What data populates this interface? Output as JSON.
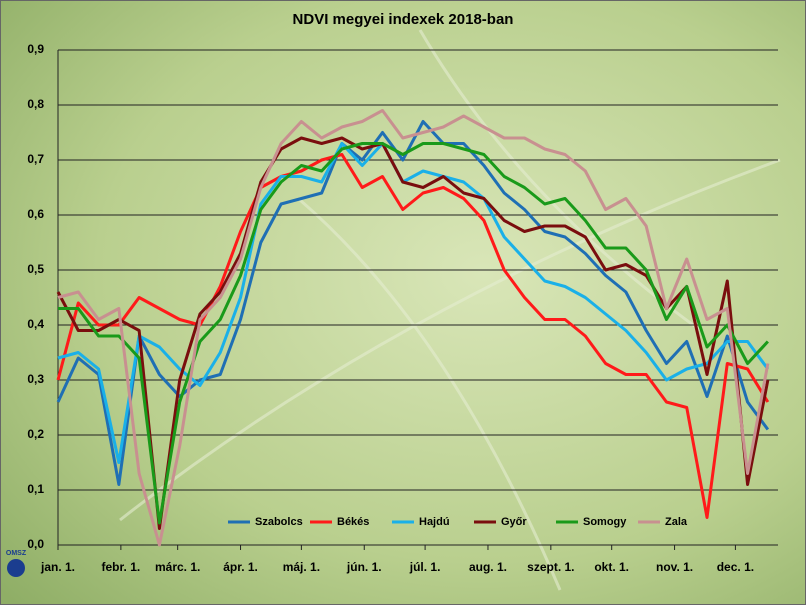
{
  "logo": "OMSZ",
  "chart_data": {
    "type": "line",
    "title": "NDVI megyei indexek 2018-ban",
    "x": [
      0,
      10,
      20,
      30,
      40,
      50,
      60,
      70,
      80,
      90,
      100,
      110,
      120,
      130,
      140,
      150,
      160,
      170,
      180,
      190,
      200,
      210,
      220,
      230,
      240,
      250,
      260,
      270,
      280,
      290,
      300,
      310,
      320,
      330,
      340,
      350
    ],
    "xlim": [
      0,
      355
    ],
    "xticks": [
      {
        "value": 0,
        "label": "jan. 1."
      },
      {
        "value": 31,
        "label": "febr. 1."
      },
      {
        "value": 59,
        "label": "márc. 1."
      },
      {
        "value": 90,
        "label": "ápr. 1."
      },
      {
        "value": 120,
        "label": "máj. 1."
      },
      {
        "value": 151,
        "label": "jún. 1."
      },
      {
        "value": 181,
        "label": "júl. 1."
      },
      {
        "value": 212,
        "label": "aug. 1."
      },
      {
        "value": 243,
        "label": "szept. 1."
      },
      {
        "value": 273,
        "label": "okt. 1."
      },
      {
        "value": 304,
        "label": "nov. 1."
      },
      {
        "value": 334,
        "label": "dec. 1."
      }
    ],
    "ylim": [
      0,
      0.9
    ],
    "yticks": [
      {
        "value": 0,
        "label": "0,0"
      },
      {
        "value": 0.1,
        "label": "0,1"
      },
      {
        "value": 0.2,
        "label": "0,2"
      },
      {
        "value": 0.3,
        "label": "0,3"
      },
      {
        "value": 0.4,
        "label": "0,4"
      },
      {
        "value": 0.5,
        "label": "0,5"
      },
      {
        "value": 0.6,
        "label": "0,6"
      },
      {
        "value": 0.7,
        "label": "0,7"
      },
      {
        "value": 0.8,
        "label": "0,8"
      },
      {
        "value": 0.9,
        "label": "0,9"
      }
    ],
    "grid": true,
    "legend": "bottom",
    "series": [
      {
        "name": "Szabolcs",
        "color": "#1f6fb4",
        "values": [
          0.26,
          0.34,
          0.31,
          0.11,
          0.38,
          0.31,
          0.27,
          0.3,
          0.31,
          0.41,
          0.55,
          0.62,
          0.63,
          0.64,
          0.73,
          0.7,
          0.75,
          0.7,
          0.77,
          0.73,
          0.73,
          0.69,
          0.64,
          0.61,
          0.57,
          0.56,
          0.53,
          0.49,
          0.46,
          0.39,
          0.33,
          0.37,
          0.27,
          0.38,
          0.26,
          0.21
        ]
      },
      {
        "name": "Békés",
        "color": "#ff1a1a",
        "values": [
          0.3,
          0.44,
          0.4,
          0.4,
          0.45,
          0.43,
          0.41,
          0.4,
          0.47,
          0.57,
          0.65,
          0.67,
          0.68,
          0.7,
          0.71,
          0.65,
          0.67,
          0.61,
          0.64,
          0.65,
          0.63,
          0.59,
          0.5,
          0.45,
          0.41,
          0.41,
          0.38,
          0.33,
          0.31,
          0.31,
          0.26,
          0.25,
          0.05,
          0.33,
          0.32,
          0.26
        ]
      },
      {
        "name": "Hajdú",
        "color": "#1ab0e8",
        "values": [
          0.34,
          0.35,
          0.32,
          0.15,
          0.38,
          0.36,
          0.32,
          0.29,
          0.35,
          0.45,
          0.62,
          0.67,
          0.67,
          0.66,
          0.73,
          0.69,
          0.73,
          0.66,
          0.68,
          0.67,
          0.66,
          0.63,
          0.56,
          0.52,
          0.48,
          0.47,
          0.45,
          0.42,
          0.39,
          0.35,
          0.3,
          0.32,
          0.33,
          0.37,
          0.37,
          0.32
        ]
      },
      {
        "name": "Győr",
        "color": "#7a0e0e",
        "values": [
          0.46,
          0.39,
          0.39,
          0.41,
          0.39,
          0.03,
          0.3,
          0.42,
          0.46,
          0.53,
          0.66,
          0.72,
          0.74,
          0.73,
          0.74,
          0.72,
          0.73,
          0.66,
          0.65,
          0.67,
          0.64,
          0.63,
          0.59,
          0.57,
          0.58,
          0.58,
          0.56,
          0.5,
          0.51,
          0.49,
          0.43,
          0.47,
          0.31,
          0.48,
          0.11,
          0.3
        ]
      },
      {
        "name": "Somogy",
        "color": "#1a9a1a",
        "values": [
          0.43,
          0.43,
          0.38,
          0.38,
          0.34,
          0.04,
          0.26,
          0.37,
          0.41,
          0.49,
          0.61,
          0.66,
          0.69,
          0.68,
          0.72,
          0.73,
          0.73,
          0.71,
          0.73,
          0.73,
          0.72,
          0.71,
          0.67,
          0.65,
          0.62,
          0.63,
          0.59,
          0.54,
          0.54,
          0.5,
          0.41,
          0.47,
          0.36,
          0.4,
          0.33,
          0.37
        ]
      },
      {
        "name": "Zala",
        "color": "#c89090",
        "values": [
          0.45,
          0.46,
          0.41,
          0.43,
          0.13,
          0.0,
          0.18,
          0.41,
          0.45,
          0.52,
          0.65,
          0.73,
          0.77,
          0.74,
          0.76,
          0.77,
          0.79,
          0.74,
          0.75,
          0.76,
          0.78,
          0.76,
          0.74,
          0.74,
          0.72,
          0.71,
          0.68,
          0.61,
          0.63,
          0.58,
          0.43,
          0.52,
          0.41,
          0.43,
          0.13,
          0.33
        ]
      }
    ]
  }
}
